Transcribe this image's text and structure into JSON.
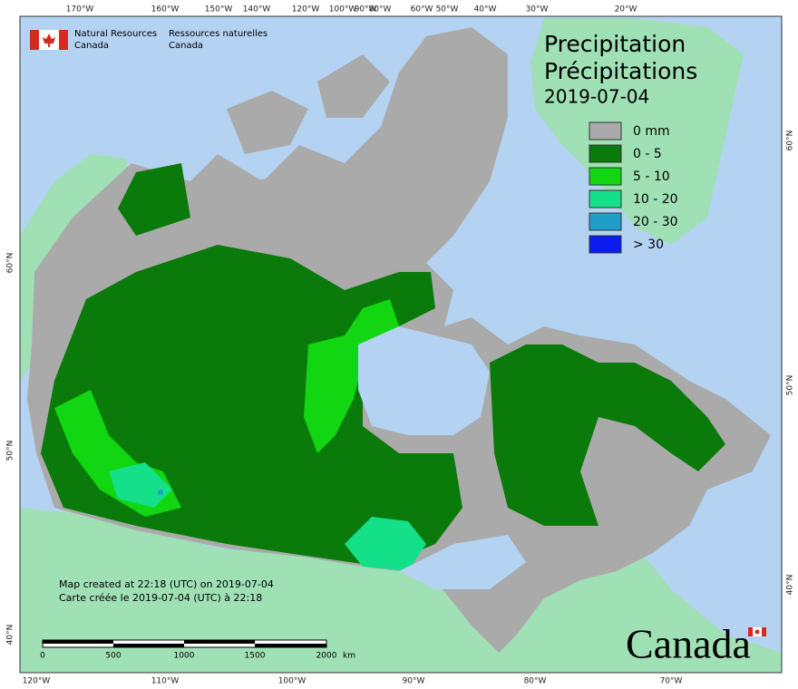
{
  "header": {
    "org_en": [
      "Natural Resources",
      "Canada"
    ],
    "org_fr": [
      "Ressources naturelles",
      "Canada"
    ]
  },
  "title": {
    "en": "Precipitation",
    "fr": "Précipitations",
    "date": "2019-07-04"
  },
  "legend": [
    {
      "label": "0 mm",
      "color": "#aaaaaa"
    },
    {
      "label": "0 - 5",
      "color": "#0a7a0a"
    },
    {
      "label": "5 - 10",
      "color": "#11d611"
    },
    {
      "label": "10 - 20",
      "color": "#14e08a"
    },
    {
      "label": "20 - 30",
      "color": "#1e9ec8"
    },
    {
      "label": "> 30",
      "color": "#0a1cf0"
    }
  ],
  "graticule": {
    "top": [
      "170°W",
      "160°W",
      "150°W",
      "140°W",
      "120°W",
      "100°W",
      "90°W",
      "80°W",
      "60°W",
      "50°W",
      "40°W",
      "30°W",
      "20°W"
    ],
    "bottom": [
      "120°W",
      "110°W",
      "100°W",
      "90°W",
      "80°W",
      "70°W"
    ],
    "left": [
      "60°N",
      "50°N",
      "40°N"
    ],
    "right": [
      "60°N",
      "50°N",
      "40°N"
    ]
  },
  "notes": [
    "Map created at 22:18 (UTC) on 2019-07-04",
    "Carte créée le 2019-07-04 (UTC) à 22:18"
  ],
  "scale": {
    "labels": [
      "0",
      "500",
      "1000",
      "1500",
      "2000"
    ],
    "unit": "km"
  },
  "wordmark": "Canada"
}
